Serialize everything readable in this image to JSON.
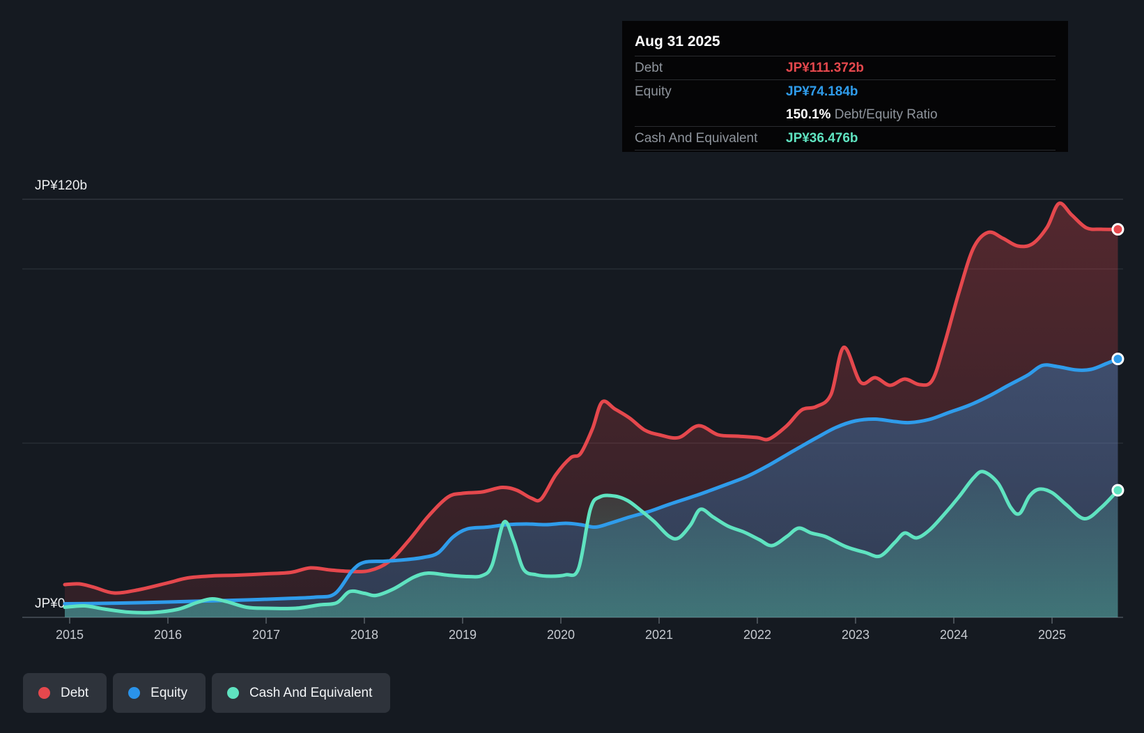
{
  "tooltip": {
    "date": "Aug 31 2025",
    "debt_label": "Debt",
    "debt_value": "JP¥111.372b",
    "equity_label": "Equity",
    "equity_value": "JP¥74.184b",
    "ratio_value": "150.1%",
    "ratio_label": " Debt/Equity Ratio",
    "cash_label": "Cash And Equivalent",
    "cash_value": "JP¥36.476b"
  },
  "legend": {
    "debt": "Debt",
    "equity": "Equity",
    "cash": "Cash And Equivalent"
  },
  "colors": {
    "debt": "#e5484d",
    "equity": "#2f9ceb",
    "cash": "#5fe3c0",
    "grid_strong": "#3d434c",
    "grid": "#30353d",
    "axis": "#4a515a",
    "tick": "#5a6168",
    "y_label": "#eceef0",
    "x_label": "#c6cad0"
  },
  "chart_data": {
    "type": "area",
    "title": "Debt to Equity history",
    "x_range": [
      2014.95,
      2025.75
    ],
    "y_range_b": [
      0,
      123
    ],
    "grid": true,
    "legend_position": "bottom-left",
    "x_axis": {
      "tick_years": [
        2015,
        2016,
        2017,
        2018,
        2019,
        2020,
        2021,
        2022,
        2023,
        2024,
        2025
      ],
      "tick_labels": [
        "2015",
        "2016",
        "2017",
        "2018",
        "2019",
        "2020",
        "2021",
        "2022",
        "2023",
        "2024",
        "2025"
      ]
    },
    "y_axis": {
      "unit": "JP¥ billions",
      "gridlines": [
        {
          "value": 120,
          "label": "JP¥120b",
          "strong": true
        },
        {
          "value": 100,
          "label": ""
        },
        {
          "value": 50,
          "label": ""
        },
        {
          "value": 0,
          "label": "JP¥0",
          "axis": true
        }
      ]
    },
    "series": [
      {
        "name": "Debt",
        "color": "#e5484d",
        "end_value_b": 111.372,
        "points": [
          [
            2014.95,
            9.4
          ],
          [
            2015.1,
            9.6
          ],
          [
            2015.25,
            8.6
          ],
          [
            2015.45,
            7.0
          ],
          [
            2015.7,
            7.9
          ],
          [
            2016.0,
            9.9
          ],
          [
            2016.2,
            11.3
          ],
          [
            2016.45,
            11.9
          ],
          [
            2016.7,
            12.1
          ],
          [
            2017.0,
            12.5
          ],
          [
            2017.25,
            12.9
          ],
          [
            2017.45,
            14.2
          ],
          [
            2017.65,
            13.6
          ],
          [
            2017.85,
            13.2
          ],
          [
            2018.05,
            13.4
          ],
          [
            2018.25,
            16.0
          ],
          [
            2018.45,
            22.0
          ],
          [
            2018.65,
            29.0
          ],
          [
            2018.85,
            34.5
          ],
          [
            2019.0,
            35.6
          ],
          [
            2019.2,
            36.0
          ],
          [
            2019.4,
            37.3
          ],
          [
            2019.55,
            36.5
          ],
          [
            2019.7,
            34.2
          ],
          [
            2019.8,
            34.0
          ],
          [
            2019.95,
            41.0
          ],
          [
            2020.1,
            45.8
          ],
          [
            2020.2,
            47.0
          ],
          [
            2020.32,
            54.0
          ],
          [
            2020.42,
            61.8
          ],
          [
            2020.55,
            59.8
          ],
          [
            2020.7,
            57.2
          ],
          [
            2020.85,
            53.8
          ],
          [
            2021.0,
            52.4
          ],
          [
            2021.2,
            51.6
          ],
          [
            2021.4,
            55.0
          ],
          [
            2021.6,
            52.4
          ],
          [
            2021.8,
            52.0
          ],
          [
            2022.0,
            51.6
          ],
          [
            2022.12,
            51.2
          ],
          [
            2022.3,
            55.0
          ],
          [
            2022.45,
            59.5
          ],
          [
            2022.6,
            60.5
          ],
          [
            2022.75,
            64.0
          ],
          [
            2022.88,
            77.5
          ],
          [
            2023.05,
            67.5
          ],
          [
            2023.2,
            68.8
          ],
          [
            2023.35,
            66.6
          ],
          [
            2023.5,
            68.4
          ],
          [
            2023.65,
            66.8
          ],
          [
            2023.78,
            68.0
          ],
          [
            2023.9,
            78.0
          ],
          [
            2024.05,
            93.0
          ],
          [
            2024.2,
            106.0
          ],
          [
            2024.35,
            110.5
          ],
          [
            2024.5,
            108.8
          ],
          [
            2024.65,
            106.6
          ],
          [
            2024.8,
            107.2
          ],
          [
            2024.95,
            112.0
          ],
          [
            2025.07,
            118.8
          ],
          [
            2025.2,
            115.5
          ],
          [
            2025.35,
            111.8
          ],
          [
            2025.5,
            111.4
          ],
          [
            2025.67,
            111.372
          ]
        ]
      },
      {
        "name": "Equity",
        "color": "#2f9ceb",
        "end_value_b": 74.184,
        "points": [
          [
            2014.95,
            3.9
          ],
          [
            2015.3,
            4.0
          ],
          [
            2015.7,
            4.2
          ],
          [
            2016.0,
            4.4
          ],
          [
            2016.4,
            4.7
          ],
          [
            2016.8,
            5.0
          ],
          [
            2017.2,
            5.4
          ],
          [
            2017.5,
            5.8
          ],
          [
            2017.7,
            6.8
          ],
          [
            2017.88,
            13.5
          ],
          [
            2018.0,
            15.8
          ],
          [
            2018.2,
            16.1
          ],
          [
            2018.4,
            16.5
          ],
          [
            2018.6,
            17.2
          ],
          [
            2018.75,
            18.5
          ],
          [
            2018.9,
            23.0
          ],
          [
            2019.05,
            25.4
          ],
          [
            2019.25,
            25.9
          ],
          [
            2019.45,
            26.6
          ],
          [
            2019.65,
            26.8
          ],
          [
            2019.85,
            26.6
          ],
          [
            2020.05,
            27.0
          ],
          [
            2020.2,
            26.6
          ],
          [
            2020.35,
            25.9
          ],
          [
            2020.5,
            27.0
          ],
          [
            2020.7,
            28.8
          ],
          [
            2020.9,
            30.4
          ],
          [
            2021.1,
            32.4
          ],
          [
            2021.4,
            35.2
          ],
          [
            2021.7,
            38.3
          ],
          [
            2021.9,
            40.5
          ],
          [
            2022.1,
            43.4
          ],
          [
            2022.35,
            47.5
          ],
          [
            2022.6,
            51.5
          ],
          [
            2022.8,
            54.5
          ],
          [
            2023.0,
            56.4
          ],
          [
            2023.2,
            56.9
          ],
          [
            2023.4,
            56.2
          ],
          [
            2023.55,
            55.9
          ],
          [
            2023.75,
            56.8
          ],
          [
            2023.95,
            58.8
          ],
          [
            2024.15,
            60.8
          ],
          [
            2024.35,
            63.4
          ],
          [
            2024.55,
            66.5
          ],
          [
            2024.75,
            69.5
          ],
          [
            2024.9,
            72.3
          ],
          [
            2025.05,
            72.0
          ],
          [
            2025.25,
            71.0
          ],
          [
            2025.4,
            71.2
          ],
          [
            2025.55,
            72.8
          ],
          [
            2025.67,
            74.184
          ]
        ]
      },
      {
        "name": "Cash And Equivalent",
        "color": "#5fe3c0",
        "end_value_b": 36.476,
        "points": [
          [
            2014.95,
            2.9
          ],
          [
            2015.15,
            3.3
          ],
          [
            2015.35,
            2.4
          ],
          [
            2015.6,
            1.5
          ],
          [
            2015.85,
            1.4
          ],
          [
            2016.1,
            2.3
          ],
          [
            2016.3,
            4.3
          ],
          [
            2016.45,
            5.3
          ],
          [
            2016.6,
            4.5
          ],
          [
            2016.8,
            2.9
          ],
          [
            2017.0,
            2.6
          ],
          [
            2017.3,
            2.6
          ],
          [
            2017.55,
            3.6
          ],
          [
            2017.72,
            4.2
          ],
          [
            2017.85,
            7.4
          ],
          [
            2018.0,
            6.9
          ],
          [
            2018.12,
            6.3
          ],
          [
            2018.3,
            8.2
          ],
          [
            2018.5,
            11.5
          ],
          [
            2018.65,
            12.7
          ],
          [
            2018.85,
            12.1
          ],
          [
            2019.05,
            11.7
          ],
          [
            2019.2,
            12.0
          ],
          [
            2019.3,
            15.0
          ],
          [
            2019.42,
            27.3
          ],
          [
            2019.52,
            22.0
          ],
          [
            2019.62,
            13.8
          ],
          [
            2019.75,
            12.2
          ],
          [
            2019.9,
            11.8
          ],
          [
            2020.05,
            12.2
          ],
          [
            2020.18,
            14.0
          ],
          [
            2020.3,
            31.0
          ],
          [
            2020.4,
            34.6
          ],
          [
            2020.55,
            34.8
          ],
          [
            2020.68,
            33.5
          ],
          [
            2020.8,
            31.0
          ],
          [
            2020.95,
            27.5
          ],
          [
            2021.1,
            23.3
          ],
          [
            2021.2,
            22.8
          ],
          [
            2021.32,
            26.5
          ],
          [
            2021.42,
            31.0
          ],
          [
            2021.55,
            28.8
          ],
          [
            2021.7,
            26.2
          ],
          [
            2021.87,
            24.4
          ],
          [
            2022.02,
            22.3
          ],
          [
            2022.15,
            20.6
          ],
          [
            2022.3,
            23.2
          ],
          [
            2022.42,
            25.6
          ],
          [
            2022.55,
            24.2
          ],
          [
            2022.7,
            23.1
          ],
          [
            2022.9,
            20.3
          ],
          [
            2023.1,
            18.6
          ],
          [
            2023.25,
            17.6
          ],
          [
            2023.4,
            21.5
          ],
          [
            2023.5,
            24.2
          ],
          [
            2023.62,
            22.8
          ],
          [
            2023.75,
            25.0
          ],
          [
            2023.9,
            29.5
          ],
          [
            2024.05,
            34.5
          ],
          [
            2024.2,
            40.0
          ],
          [
            2024.3,
            41.8
          ],
          [
            2024.45,
            38.5
          ],
          [
            2024.58,
            31.5
          ],
          [
            2024.67,
            29.8
          ],
          [
            2024.77,
            34.8
          ],
          [
            2024.87,
            36.8
          ],
          [
            2025.0,
            35.8
          ],
          [
            2025.15,
            32.2
          ],
          [
            2025.33,
            28.3
          ],
          [
            2025.5,
            31.5
          ],
          [
            2025.67,
            36.476
          ]
        ]
      }
    ]
  }
}
